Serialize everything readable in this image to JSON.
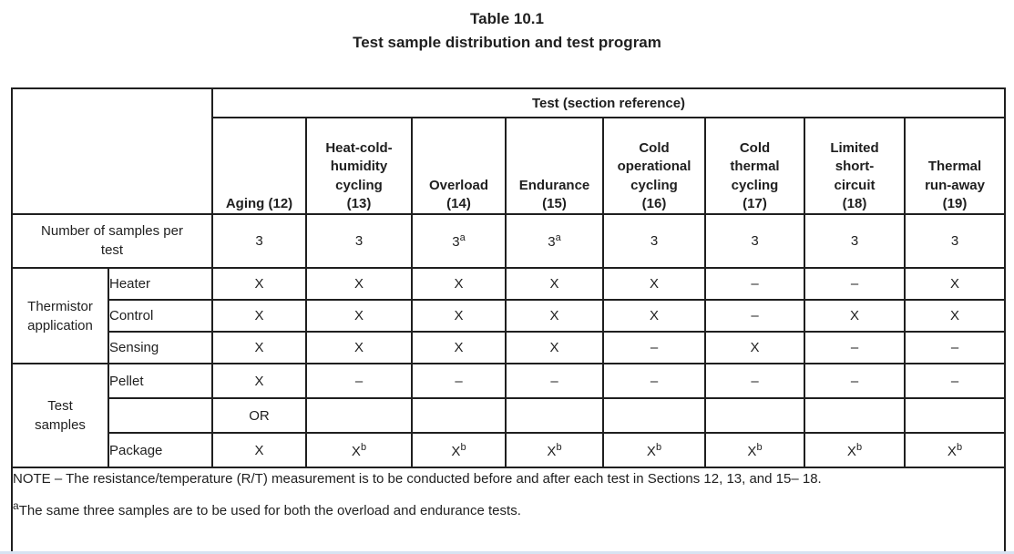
{
  "page": {
    "title_line1": "Table 10.1",
    "title_line2": "Test sample distribution and test program"
  },
  "table": {
    "span_header": "Test (section reference)",
    "columns": [
      {
        "id": "aging",
        "label": "Aging (12)"
      },
      {
        "id": "heat-cold-humidity-cycling",
        "label": "Heat-cold-\nhumidity\ncycling\n(13)"
      },
      {
        "id": "overload",
        "label": "Overload\n(14)"
      },
      {
        "id": "endurance",
        "label": "Endurance\n(15)"
      },
      {
        "id": "cold-operational-cycling",
        "label": "Cold\noperational\ncycling\n(16)"
      },
      {
        "id": "cold-thermal-cycling",
        "label": "Cold\nthermal\ncycling\n(17)"
      },
      {
        "id": "limited-short-circuit",
        "label": "Limited\nshort-\ncircuit\n(18)"
      },
      {
        "id": "thermal-run-away",
        "label": "Thermal\nrun-away\n(19)"
      }
    ],
    "samples_row": {
      "label": "Number of samples per\ntest",
      "cells": [
        {
          "t": "3"
        },
        {
          "t": "3"
        },
        {
          "t": "3",
          "sup": "a"
        },
        {
          "t": "3",
          "sup": "a"
        },
        {
          "t": "3"
        },
        {
          "t": "3"
        },
        {
          "t": "3"
        },
        {
          "t": "3"
        }
      ]
    },
    "groups": [
      {
        "label": "Thermistor\napplication",
        "rows": [
          {
            "label": "Heater",
            "cells": [
              {
                "t": "X"
              },
              {
                "t": "X"
              },
              {
                "t": "X"
              },
              {
                "t": "X"
              },
              {
                "t": "X"
              },
              {
                "t": "–"
              },
              {
                "t": "–"
              },
              {
                "t": "X"
              }
            ]
          },
          {
            "label": "Control",
            "cells": [
              {
                "t": "X"
              },
              {
                "t": "X"
              },
              {
                "t": "X"
              },
              {
                "t": "X"
              },
              {
                "t": "X"
              },
              {
                "t": "–"
              },
              {
                "t": "X"
              },
              {
                "t": "X"
              }
            ]
          },
          {
            "label": "Sensing",
            "cells": [
              {
                "t": "X"
              },
              {
                "t": "X"
              },
              {
                "t": "X"
              },
              {
                "t": "X"
              },
              {
                "t": "–"
              },
              {
                "t": "X"
              },
              {
                "t": "–"
              },
              {
                "t": "–"
              }
            ]
          }
        ]
      },
      {
        "label": "Test\nsamples",
        "rows": [
          {
            "label": "Pellet",
            "cells": [
              {
                "t": "X"
              },
              {
                "t": "–"
              },
              {
                "t": "–"
              },
              {
                "t": "–"
              },
              {
                "t": "–"
              },
              {
                "t": "–"
              },
              {
                "t": "–"
              },
              {
                "t": "–"
              }
            ]
          },
          {
            "label": "",
            "cells": [
              {
                "t": "OR"
              },
              {
                "t": ""
              },
              {
                "t": ""
              },
              {
                "t": ""
              },
              {
                "t": ""
              },
              {
                "t": ""
              },
              {
                "t": ""
              },
              {
                "t": ""
              }
            ]
          },
          {
            "label": "Package",
            "cells": [
              {
                "t": "X"
              },
              {
                "t": "X",
                "sup": "b"
              },
              {
                "t": "X",
                "sup": "b"
              },
              {
                "t": "X",
                "sup": "b"
              },
              {
                "t": "X",
                "sup": "b"
              },
              {
                "t": "X",
                "sup": "b"
              },
              {
                "t": "X",
                "sup": "b"
              },
              {
                "t": "X",
                "sup": "b"
              }
            ]
          }
        ]
      }
    ],
    "note": "NOTE – The resistance/temperature (R/T) measurement is to be conducted before and after each test in Sections 12, 13, and 15– 18.",
    "footnote_a": {
      "sup": "a",
      "text": "The same three samples are to be used for both the overload and endurance tests."
    }
  }
}
